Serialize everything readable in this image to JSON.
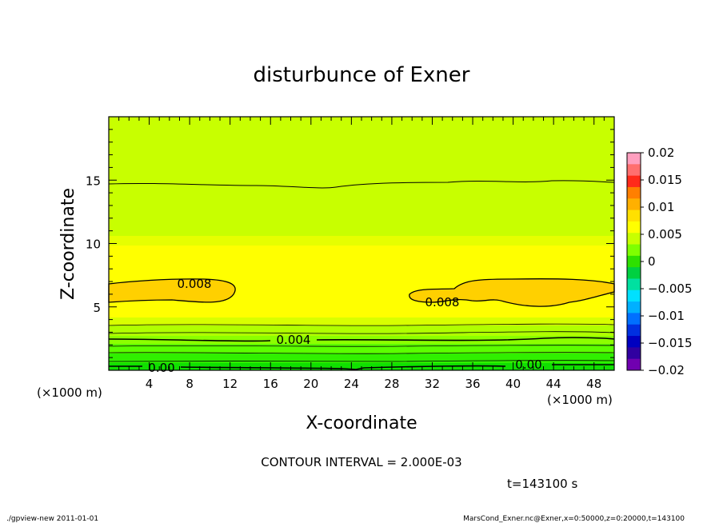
{
  "chart_data": {
    "type": "heatmap",
    "title": "disturbunce of Exner",
    "xlabel": "X-coordinate",
    "ylabel": "Z-coordinate",
    "x_unit": "(×1000 m)",
    "x_unit_right": "(×1000 m)",
    "x_ticks": [
      4,
      8,
      12,
      16,
      20,
      24,
      28,
      32,
      36,
      40,
      44,
      48
    ],
    "y_ticks": [
      5,
      10,
      15
    ],
    "xlim": [
      0,
      50
    ],
    "ylim": [
      0,
      20
    ],
    "colorbar": {
      "ticks": [
        "0.02",
        "0.015",
        "0.01",
        "0.005",
        "0",
        "−0.005",
        "−0.01",
        "−0.015",
        "−0.02"
      ],
      "range": [
        -0.02,
        0.02
      ],
      "colors": [
        "#ff9fbf",
        "#ff6f6f",
        "#ff2a1a",
        "#ff7f00",
        "#ffb000",
        "#ffe000",
        "#ffff00",
        "#c8ff00",
        "#7fff00",
        "#2ee000",
        "#00d040",
        "#00e0a0",
        "#00e0ff",
        "#00b0ff",
        "#0070ff",
        "#0030e0",
        "#0000c0",
        "#3000a0",
        "#7000b0"
      ]
    },
    "contour_labels": [
      {
        "text": "0.008",
        "x": 8.5,
        "z": 6.6
      },
      {
        "text": "0.008",
        "x": 32.8,
        "z": 5.4
      },
      {
        "text": "0.004",
        "x": 18.3,
        "z": 2.4
      },
      {
        "text": "0.00",
        "x": 5.3,
        "z": 0.2
      },
      {
        "text": "0.00",
        "x": 40.8,
        "z": 0.4
      }
    ],
    "contour_interval": "CONTOUR INTERVAL = 2.000E-03",
    "time": "t=143100 s",
    "footer_left": "./gpview-new  2011-01-01",
    "footer_right": "MarsCond_Exner.nc@Exner,x=0:50000,z=0:20000,t=143100"
  }
}
